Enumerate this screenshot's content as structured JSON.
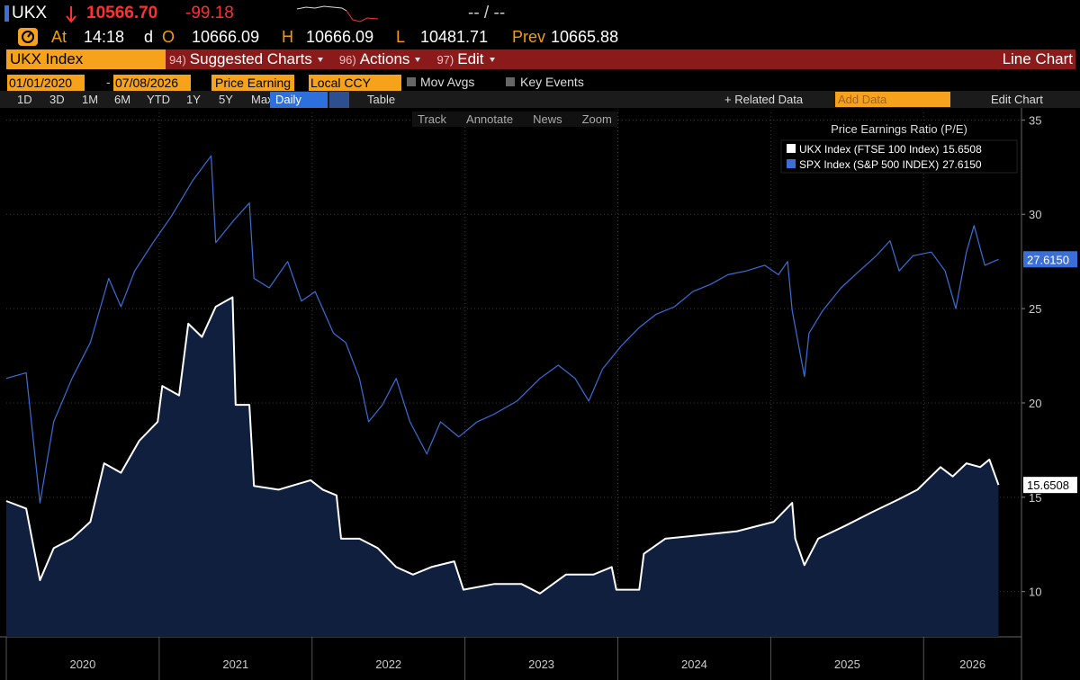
{
  "header": {
    "ticker": "UKX",
    "price": "10566.70",
    "change": "-99.18",
    "range": "-- / --"
  },
  "quote": {
    "at_label": "At",
    "time": "14:18",
    "d": "d",
    "open_label": "O",
    "open": "10666.09",
    "high_label": "H",
    "high": "10666.09",
    "low_label": "L",
    "low": "10481.71",
    "prev_label": "Prev",
    "prev": "10665.88"
  },
  "menu": {
    "security": "UKX Index",
    "items": [
      {
        "num": "94)",
        "label": "Suggested Charts"
      },
      {
        "num": "96)",
        "label": "Actions"
      },
      {
        "num": "97)",
        "label": "Edit"
      }
    ],
    "view": "Line Chart"
  },
  "settings": {
    "start": "01/01/2020",
    "sep": "-",
    "end": "07/08/2026",
    "field": "Price Earning",
    "currency": "Local CCY",
    "toggles": [
      "Mov Avgs",
      "Key Events"
    ]
  },
  "toolbar": {
    "periods": [
      "1D",
      "3D",
      "1M",
      "6M",
      "YTD",
      "1Y",
      "5Y",
      "Max"
    ],
    "frequency": "Daily",
    "table": "Table",
    "related": "+ Related Data",
    "add_data": "Add Data",
    "edit": "Edit Chart"
  },
  "tools": [
    "Track",
    "Annotate",
    "News",
    "Zoom"
  ],
  "chart_data": {
    "type": "line",
    "legend_title": "Price Earnings Ratio (P/E)",
    "legend": "top-right",
    "grid": true,
    "xlim": [
      2020,
      2026.64
    ],
    "xticks": [
      2020,
      2021,
      2022,
      2023,
      2024,
      2025,
      2026
    ],
    "ylim": [
      7.6,
      35.4
    ],
    "yticks": [
      10,
      15,
      20,
      25,
      30,
      35
    ],
    "series": [
      {
        "name": "UKX Index (FTSE 100 Index)",
        "color": "#ffffff",
        "fill": "#0f1f3d",
        "x": [
          2020.0,
          2020.13,
          2020.22,
          2020.31,
          2020.43,
          2020.55,
          2020.64,
          2020.75,
          2020.87,
          2020.99,
          2021.02,
          2021.13,
          2021.19,
          2021.28,
          2021.37,
          2021.48,
          2021.5,
          2021.59,
          2021.62,
          2021.78,
          2021.99,
          2022.07,
          2022.16,
          2022.19,
          2022.31,
          2022.43,
          2022.55,
          2022.66,
          2022.78,
          2022.93,
          2022.99,
          2023.19,
          2023.37,
          2023.49,
          2023.66,
          2023.84,
          2023.96,
          2023.99,
          2024.14,
          2024.17,
          2024.31,
          2024.55,
          2024.78,
          2025.02,
          2025.14,
          2025.16,
          2025.22,
          2025.31,
          2025.49,
          2025.66,
          2025.84,
          2025.96,
          2026.11,
          2026.19,
          2026.28,
          2026.37,
          2026.43,
          2026.49
        ],
        "values": [
          14.8,
          14.4,
          10.6,
          12.3,
          12.8,
          13.7,
          16.8,
          16.3,
          18.0,
          19.0,
          20.9,
          20.4,
          24.2,
          23.5,
          25.1,
          25.6,
          19.9,
          19.9,
          15.6,
          15.4,
          15.9,
          15.4,
          15.1,
          12.8,
          12.8,
          12.3,
          11.3,
          10.9,
          11.3,
          11.6,
          10.1,
          10.4,
          10.4,
          9.9,
          10.9,
          10.9,
          11.3,
          10.1,
          10.1,
          12.0,
          12.8,
          13.0,
          13.2,
          13.7,
          14.7,
          12.8,
          11.4,
          12.8,
          13.5,
          14.2,
          14.9,
          15.4,
          16.6,
          16.1,
          16.8,
          16.6,
          17.0,
          15.6508
        ],
        "value_labels": [
          null,
          null,
          null,
          null,
          null,
          null,
          null,
          null,
          null,
          null,
          null,
          null,
          null,
          null,
          null,
          null,
          null,
          null,
          null,
          null,
          null,
          null,
          null,
          null,
          null,
          null,
          null,
          null,
          null,
          null,
          null,
          null,
          null,
          null,
          null,
          null,
          null,
          null,
          null,
          null,
          null,
          null,
          null,
          null,
          null,
          null,
          null,
          null,
          null,
          null,
          null,
          null,
          null,
          null,
          null,
          null,
          null,
          "15.6508"
        ]
      },
      {
        "name": "SPX Index (S&P 500 INDEX)",
        "color": "#3a6fd8",
        "x": [
          2020.0,
          2020.13,
          2020.22,
          2020.31,
          2020.43,
          2020.55,
          2020.67,
          2020.75,
          2020.84,
          2020.96,
          2021.08,
          2021.22,
          2021.34,
          2021.37,
          2021.49,
          2021.59,
          2021.62,
          2021.72,
          2021.84,
          2021.93,
          2022.02,
          2022.14,
          2022.22,
          2022.31,
          2022.37,
          2022.46,
          2022.55,
          2022.64,
          2022.75,
          2022.84,
          2022.96,
          2023.08,
          2023.19,
          2023.34,
          2023.49,
          2023.61,
          2023.72,
          2023.81,
          2023.9,
          2024.02,
          2024.14,
          2024.25,
          2024.37,
          2024.49,
          2024.61,
          2024.72,
          2024.84,
          2024.96,
          2025.05,
          2025.11,
          2025.14,
          2025.22,
          2025.25,
          2025.34,
          2025.46,
          2025.58,
          2025.69,
          2025.78,
          2025.84,
          2025.93,
          2026.05,
          2026.14,
          2026.21,
          2026.28,
          2026.33,
          2026.4,
          2026.49
        ],
        "values": [
          21.3,
          21.6,
          14.7,
          19.0,
          21.3,
          23.2,
          26.6,
          25.1,
          27.0,
          28.5,
          29.9,
          31.8,
          33.1,
          28.5,
          29.7,
          30.6,
          26.6,
          26.1,
          27.5,
          25.4,
          25.9,
          23.7,
          23.2,
          21.3,
          19.0,
          19.9,
          21.3,
          19.0,
          17.3,
          19.0,
          18.2,
          19.0,
          19.4,
          20.1,
          21.3,
          22.0,
          21.3,
          20.1,
          21.8,
          23.0,
          24.0,
          24.7,
          25.1,
          25.9,
          26.3,
          26.8,
          27.0,
          27.3,
          26.8,
          27.5,
          24.9,
          21.4,
          23.7,
          24.9,
          26.1,
          27.0,
          27.8,
          28.6,
          27.0,
          27.8,
          28.0,
          27.0,
          25.0,
          28.0,
          29.4,
          27.3,
          27.615
        ],
        "value_labels": [
          null,
          null,
          null,
          null,
          null,
          null,
          null,
          null,
          null,
          null,
          null,
          null,
          null,
          null,
          null,
          null,
          null,
          null,
          null,
          null,
          null,
          null,
          null,
          null,
          null,
          null,
          null,
          null,
          null,
          null,
          null,
          null,
          null,
          null,
          null,
          null,
          null,
          null,
          null,
          null,
          null,
          null,
          null,
          null,
          null,
          null,
          null,
          null,
          null,
          null,
          null,
          null,
          null,
          null,
          null,
          null,
          null,
          null,
          null,
          null,
          null,
          null,
          null,
          null,
          null,
          null,
          "27.6150"
        ]
      }
    ]
  }
}
